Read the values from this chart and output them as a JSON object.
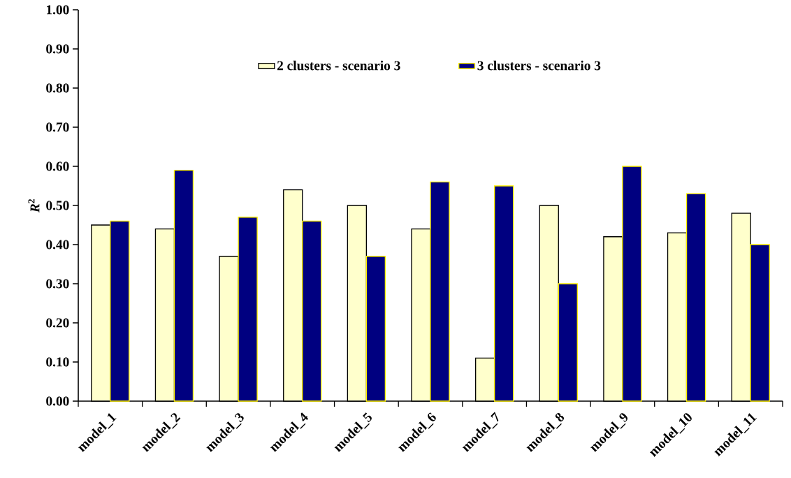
{
  "chart_data": {
    "type": "bar",
    "ylabel": "*R*$^{2}$",
    "categories": [
      "model_1",
      "model_2",
      "model_3",
      "model_4",
      "model_5",
      "model_6",
      "model_7",
      "model_8",
      "model_9",
      "model_10",
      "model_11"
    ],
    "series": [
      {
        "name": "2 clusters - scenario 3",
        "color": "#ffffcc",
        "values": [
          0.45,
          0.44,
          0.37,
          0.54,
          0.5,
          0.44,
          0.11,
          0.5,
          0.42,
          0.43,
          0.48
        ]
      },
      {
        "name": "3 clusters - scenario 3",
        "color": "#000080",
        "values": [
          0.46,
          0.59,
          0.47,
          0.46,
          0.37,
          0.56,
          0.55,
          0.3,
          0.6,
          0.53,
          0.4
        ]
      }
    ],
    "ylim": [
      0,
      1
    ],
    "yticks": [
      {
        "value": 0,
        "label": "0.00"
      },
      {
        "value": 0.1,
        "label": "0.10"
      },
      {
        "value": 0.2,
        "label": "0.20"
      },
      {
        "value": 0.3,
        "label": "0.30"
      },
      {
        "value": 0.4,
        "label": "0.40"
      },
      {
        "value": 0.5,
        "label": "0.50"
      },
      {
        "value": 0.6,
        "label": "0.60"
      },
      {
        "value": 0.7,
        "label": "0.70"
      },
      {
        "value": 0.8,
        "label": "0.80"
      },
      {
        "value": 0.9,
        "label": "0.90"
      },
      {
        "value": 1,
        "label": "1.00"
      }
    ],
    "grid": false,
    "legend": "top"
  }
}
